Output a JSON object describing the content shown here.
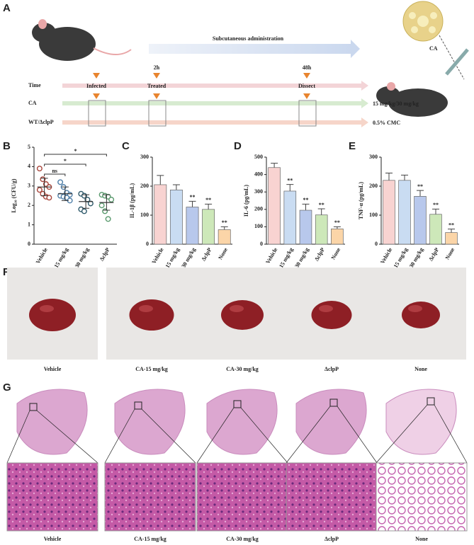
{
  "panel_a": {
    "letter": "A",
    "arrow_label": "Subcutaneous administration",
    "time_row": "Time",
    "times": [
      "2h",
      "48h"
    ],
    "events": [
      "Infected",
      "Treated",
      "Dissect"
    ],
    "ca_row": "CA",
    "ca_dose": "15 mg/kg/30 mg/kg",
    "control_row": "WT/ΔclpP",
    "control_dose": "0.5% CMC",
    "compound": "CA"
  },
  "chart_data": [
    {
      "letter": "B",
      "type": "dot",
      "y_label": "Log₁₀ (CFU/g)",
      "categories": [
        "Vehicle",
        "CA-15 mg/kg",
        "CA-30 mg/kg",
        "ΔclpP"
      ],
      "points": [
        [
          3.9,
          3.35,
          3.1,
          2.95,
          2.8,
          2.6,
          2.45,
          2.4
        ],
        [
          3.2,
          2.95,
          2.65,
          2.55,
          2.5,
          2.45,
          2.4,
          2.25
        ],
        [
          2.6,
          2.5,
          2.3,
          2.1,
          1.8,
          1.7
        ],
        [
          2.55,
          2.5,
          2.45,
          2.3,
          2.0,
          1.7,
          1.3
        ]
      ],
      "means": [
        2.95,
        2.6,
        2.2,
        2.15
      ],
      "errors": [
        0.45,
        0.35,
        0.35,
        0.4
      ],
      "colors": [
        "#a8463c",
        "#4f7fa8",
        "#2f5a6b",
        "#5a9a6e"
      ],
      "ylim": [
        0,
        5
      ],
      "yticks": [
        0,
        1,
        2,
        3,
        4,
        5
      ],
      "comparisons": [
        {
          "label": "ns",
          "from": "Vehicle",
          "to": "CA-15 mg/kg"
        },
        {
          "label": "*",
          "from": "Vehicle",
          "to": "CA-30 mg/kg"
        },
        {
          "label": "*",
          "from": "Vehicle",
          "to": "ΔclpP"
        }
      ]
    },
    {
      "letter": "C",
      "type": "bar",
      "y_label": "IL-1β (pg/mL)",
      "categories": [
        "Vehicle",
        "CA-15 mg/kg",
        "CA-30 mg/kg",
        "ΔclpP",
        "None"
      ],
      "values": [
        205,
        187,
        128,
        120,
        50
      ],
      "errors": [
        32,
        18,
        20,
        18,
        10
      ],
      "significance": [
        null,
        null,
        "**",
        "**",
        "**"
      ],
      "colors": [
        "#f8d3d1",
        "#c9dcf2",
        "#b8c8ec",
        "#cde8b9",
        "#fbd5a8"
      ],
      "ylim": [
        0,
        300
      ],
      "yticks": [
        0,
        100,
        200,
        300
      ]
    },
    {
      "letter": "D",
      "type": "bar",
      "y_label": "IL-6 (pg/mL)",
      "categories": [
        "Vehicle",
        "CA-15 mg/kg",
        "CA-30 mg/kg",
        "ΔclpP",
        "None"
      ],
      "values": [
        440,
        305,
        195,
        168,
        88
      ],
      "errors": [
        25,
        38,
        35,
        35,
        12
      ],
      "significance": [
        null,
        "**",
        "**",
        "**",
        "**"
      ],
      "colors": [
        "#f8d3d1",
        "#c9dcf2",
        "#b8c8ec",
        "#cde8b9",
        "#fbd5a8"
      ],
      "ylim": [
        0,
        500
      ],
      "yticks": [
        0,
        100,
        200,
        300,
        400,
        500
      ]
    },
    {
      "letter": "E",
      "type": "bar",
      "y_label": "TNF-α (pg/mL)",
      "categories": [
        "Vehicle",
        "CA-15 mg/kg",
        "CA-30 mg/kg",
        "ΔclpP",
        "None"
      ],
      "values": [
        220,
        220,
        165,
        103,
        40
      ],
      "errors": [
        25,
        18,
        20,
        18,
        12
      ],
      "significance": [
        null,
        null,
        "**",
        "**",
        "**"
      ],
      "colors": [
        "#f8d3d1",
        "#c9dcf2",
        "#b8c8ec",
        "#cde8b9",
        "#fbd5a8"
      ],
      "ylim": [
        0,
        300
      ],
      "yticks": [
        0,
        100,
        200,
        300
      ]
    }
  ],
  "panel_f": {
    "letter": "F",
    "labels": [
      "Vehicle",
      "CA-15 mg/kg",
      "CA-30 mg/kg",
      "ΔclpP",
      "None"
    ]
  },
  "panel_g": {
    "letter": "G",
    "labels": [
      "Vehicle",
      "CA-15 mg/kg",
      "CA-30 mg/kg",
      "ΔclpP",
      "None"
    ]
  }
}
